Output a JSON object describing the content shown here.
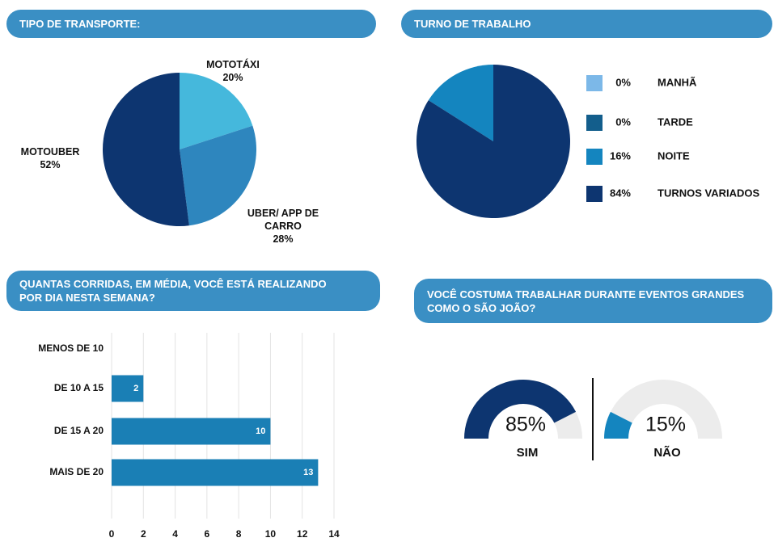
{
  "chart_data": [
    {
      "type": "pie",
      "title": "TIPO DE TRANSPORTE:",
      "direction": "clockwise",
      "categories": [
        "MOTOTÁXI",
        "UBER/ APP DE CARRO",
        "MOTOUBER"
      ],
      "values": [
        20,
        28,
        52
      ],
      "value_labels": [
        "20%",
        "28%",
        "52%"
      ],
      "colors": [
        "#45b8dc",
        "#2e86be",
        "#0d3570"
      ]
    },
    {
      "type": "pie",
      "title": "TURNO DE TRABALHO",
      "direction": "counterclockwise",
      "legend": "right",
      "categories": [
        "MANHÃ",
        "TARDE",
        "NOITE",
        "TURNOS VARIADOS"
      ],
      "values": [
        0,
        0,
        16,
        84
      ],
      "value_labels": [
        "0%",
        "0%",
        "16%",
        "84%"
      ],
      "colors": [
        "#7cb8e8",
        "#135e8c",
        "#1485bf",
        "#0d3570"
      ]
    },
    {
      "type": "hbar",
      "title": "QUANTAS CORRIDAS, EM MÉDIA, VOCÊ ESTÁ REALIZANDO POR DIA NESTA SEMANA?",
      "categories": [
        "MENOS DE 10",
        "DE 10 A 15",
        "DE 15 A 20",
        "MAIS DE 20"
      ],
      "values": [
        null,
        2,
        10,
        13
      ],
      "color": "#1a7fb5",
      "xlim": [
        0,
        14
      ],
      "xticks": [
        0,
        2,
        4,
        6,
        8,
        10,
        12,
        14
      ],
      "grid": true
    },
    {
      "type": "gauge",
      "title": "VOCÊ COSTUMA TRABALHAR DURANTE EVENTOS GRANDES COMO O SÃO JOÃO?",
      "categories": [
        "SIM",
        "NÃO"
      ],
      "values": [
        85,
        15
      ],
      "value_labels": [
        "85%",
        "15%"
      ],
      "colors": [
        "#0d3570",
        "#1485bf"
      ],
      "ylim": [
        0,
        100
      ]
    }
  ]
}
